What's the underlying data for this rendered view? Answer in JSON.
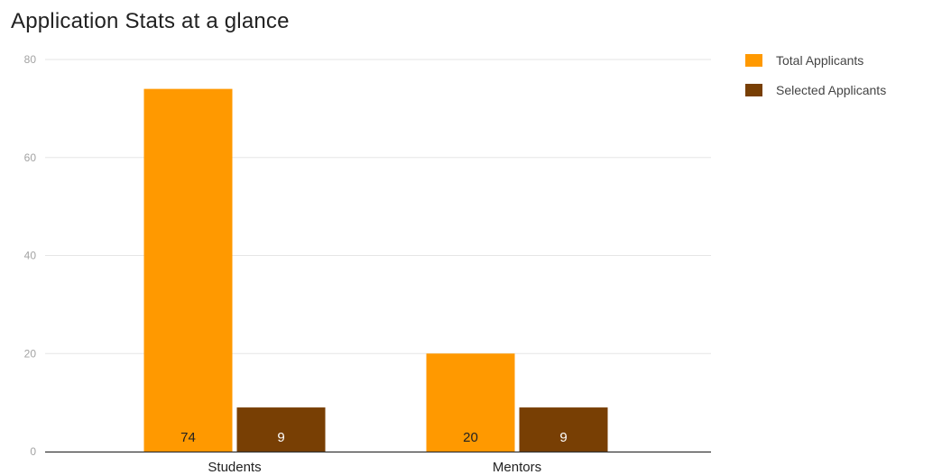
{
  "chart_data": {
    "type": "bar",
    "title": "Application Stats at a glance",
    "categories": [
      "Students",
      "Mentors"
    ],
    "series": [
      {
        "name": "Total Applicants",
        "values": [
          74,
          20
        ],
        "color": "#ff9900",
        "label_color": "#222222"
      },
      {
        "name": "Selected Applicants",
        "values": [
          9,
          9
        ],
        "color": "#783f04",
        "label_color": "#ffffff"
      }
    ],
    "y_ticks": [
      "0",
      "20",
      "40",
      "60",
      "80"
    ],
    "ylim": [
      0,
      80
    ],
    "grid": true,
    "legend_position": "right",
    "xlabel": "",
    "ylabel": ""
  }
}
